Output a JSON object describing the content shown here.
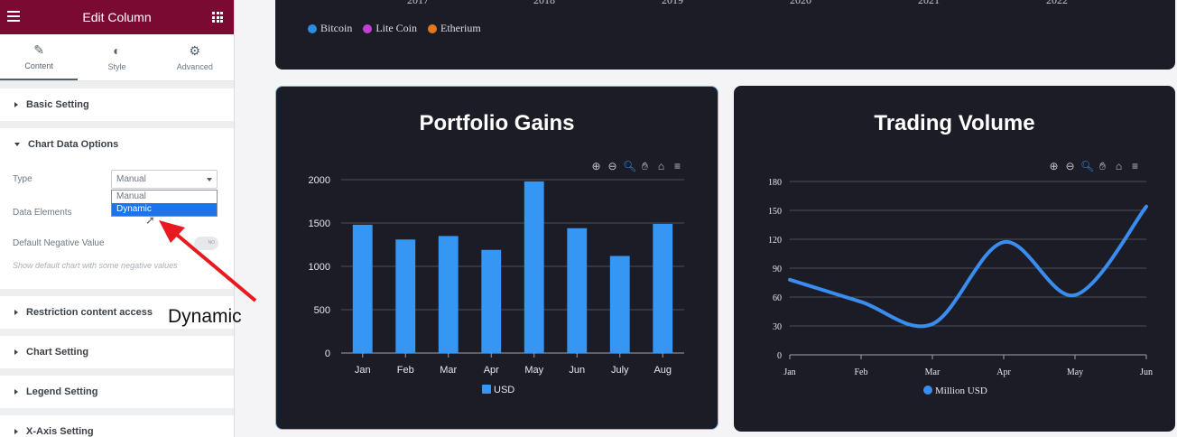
{
  "sidebar": {
    "title": "Edit Column",
    "tabs": [
      {
        "label": "Content",
        "icon": "pencil-icon"
      },
      {
        "label": "Style",
        "icon": "contrast-icon"
      },
      {
        "label": "Advanced",
        "icon": "gear-icon"
      }
    ],
    "sections": {
      "basic": "Basic Setting",
      "chart_data_options": "Chart Data Options",
      "restriction": "Restriction content access",
      "chart_setting": "Chart Setting",
      "legend_setting": "Legend Setting",
      "xaxis_setting": "X-Axis Setting"
    },
    "controls": {
      "type_label": "Type",
      "type_value": "Manual",
      "type_options": [
        "Manual",
        "Dynamic"
      ],
      "data_elements_label": "Data Elements",
      "negative_label": "Default Negative Value",
      "negative_toggle": "NO",
      "negative_help": "Show default chart with some negative values"
    }
  },
  "annotation": {
    "text": "Dynamic",
    "arrow_color": "#e8191f"
  },
  "top_chart": {
    "years": [
      "2017",
      "2018",
      "2019",
      "2020",
      "2021",
      "2022"
    ],
    "legend": [
      {
        "name": "Bitcoin",
        "color": "#2d8cdb"
      },
      {
        "name": "Lite Coin",
        "color": "#c43ed6"
      },
      {
        "name": "Etherium",
        "color": "#e2781d"
      }
    ]
  },
  "chart_data": [
    {
      "type": "bar",
      "title": "Portfolio Gains",
      "categories": [
        "Jan",
        "Feb",
        "Mar",
        "Apr",
        "May",
        "Jun",
        "July",
        "Aug"
      ],
      "series": [
        {
          "name": "USD",
          "values": [
            1480,
            1310,
            1350,
            1190,
            1980,
            1440,
            1120,
            1490
          ],
          "color": "#3596f4"
        }
      ],
      "yticks": [
        "0",
        "500",
        "1000",
        "1500",
        "2000"
      ],
      "ylim": [
        0,
        2000
      ]
    },
    {
      "type": "line",
      "title": "Trading Volume",
      "categories": [
        "Jan",
        "Feb",
        "Mar",
        "Apr",
        "May",
        "Jun"
      ],
      "series": [
        {
          "name": "Million USD",
          "values": [
            78,
            55,
            32,
            117,
            62,
            154
          ],
          "color": "#3a8df0"
        }
      ],
      "yticks": [
        "0",
        "30",
        "60",
        "90",
        "120",
        "150",
        "180"
      ],
      "ylim": [
        0,
        180
      ]
    }
  ]
}
